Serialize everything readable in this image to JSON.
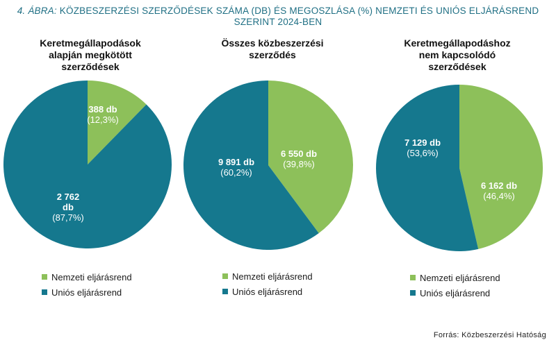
{
  "figure": {
    "title_prefix": "4. ÁBRA:",
    "title_rest": " KÖZBESZERZÉSI SZERZŐDÉSEK SZÁMA (DB) ÉS MEGOSZLÁSA (%) NEMZETI ÉS UNIÓS ELJÁRÁSREND",
    "title_line2": "SZERINT  2024-BEN",
    "source": "Forrás: Közbeszerzési  Hatóság"
  },
  "colors": {
    "nemzeti": "#8dc05a",
    "unios": "#15788e"
  },
  "chart_data": [
    {
      "type": "pie",
      "title_lines": [
        "Keretmegállapodások",
        "alapján megkötött",
        "szerződések"
      ],
      "slices": [
        {
          "name": "Nemzeti eljárásrend",
          "value": 388,
          "percent": 12.3,
          "label_lines": [
            "388 db"
          ],
          "percent_label": "(12,3%)"
        },
        {
          "name": "Uniós eljárásrend",
          "value": 2762,
          "percent": 87.7,
          "label_lines": [
            "2 762",
            "db"
          ],
          "percent_label": "(87,7%)"
        }
      ],
      "legend": [
        "Nemzeti eljárásrend",
        "Uniós eljárásrend"
      ]
    },
    {
      "type": "pie",
      "title_lines": [
        "Összes közbeszerzési",
        "szerződés"
      ],
      "slices": [
        {
          "name": "Nemzeti eljárásrend",
          "value": 6550,
          "percent": 39.8,
          "label_lines": [
            "6 550 db"
          ],
          "percent_label": "(39,8%)"
        },
        {
          "name": "Uniós eljárásrend",
          "value": 9891,
          "percent": 60.2,
          "label_lines": [
            "9 891 db"
          ],
          "percent_label": "(60,2%)"
        }
      ],
      "legend": [
        "Nemzeti eljárásrend",
        "Uniós eljárásrend"
      ]
    },
    {
      "type": "pie",
      "title_lines": [
        "Keretmegállapodáshoz",
        "nem kapcsolódó",
        "szerződések"
      ],
      "slices": [
        {
          "name": "Nemzeti eljárásrend",
          "value": 6162,
          "percent": 46.4,
          "label_lines": [
            "6 162 db"
          ],
          "percent_label": "(46,4%)"
        },
        {
          "name": "Uniós eljárásrend",
          "value": 7129,
          "percent": 53.6,
          "label_lines": [
            "7 129 db"
          ],
          "percent_label": "(53,6%)"
        }
      ],
      "legend": [
        "Nemzeti eljárásrend",
        "Uniós eljárásrend"
      ]
    }
  ]
}
